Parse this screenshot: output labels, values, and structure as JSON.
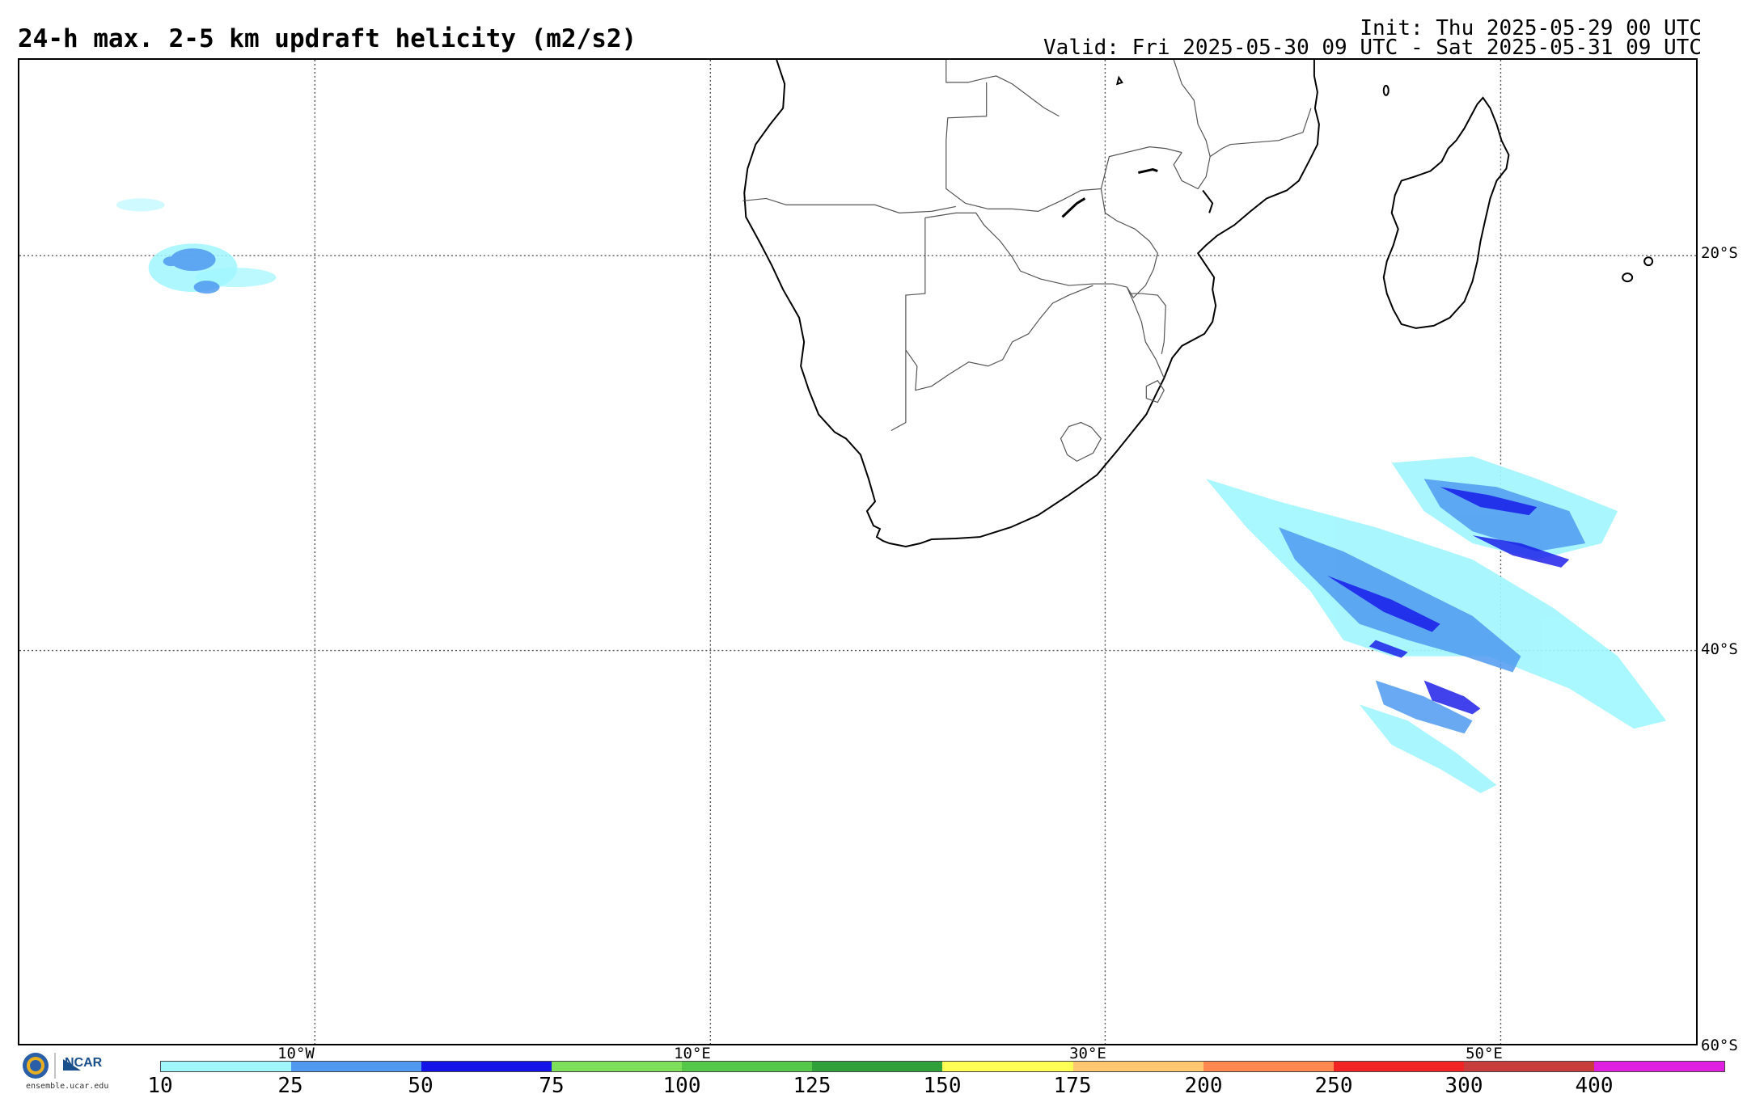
{
  "header": {
    "title": "24-h max. 2-5 km updraft helicity (m2/s2)",
    "init": "Init: Thu 2025-05-29 00 UTC",
    "valid": "Valid: Fri 2025-05-30 09 UTC - Sat 2025-05-31 09 UTC"
  },
  "map": {
    "lat_labels": [
      "20°S",
      "40°S",
      "60°S"
    ],
    "lon_labels": [
      "10°W",
      "10°E",
      "30°E",
      "50°E"
    ],
    "colors": {
      "coast": "#000000",
      "border": "#555555",
      "grid": "#555555"
    }
  },
  "colorbar": {
    "ticks": [
      "10",
      "25",
      "50",
      "75",
      "100",
      "125",
      "150",
      "175",
      "200",
      "250",
      "300",
      "400"
    ],
    "colors": [
      "#a0f6ff",
      "#4f9af0",
      "#1414e8",
      "#7ee05a",
      "#55c84a",
      "#2fa03a",
      "#ffff55",
      "#ffc870",
      "#ff8850",
      "#f02424",
      "#c83c3c",
      "#e020e0"
    ]
  },
  "logo": {
    "org": "NCAR",
    "site": "ensemble.ucar.edu",
    "icons": [
      "nsf-logo-icon",
      "ncar-logo-icon"
    ]
  }
}
